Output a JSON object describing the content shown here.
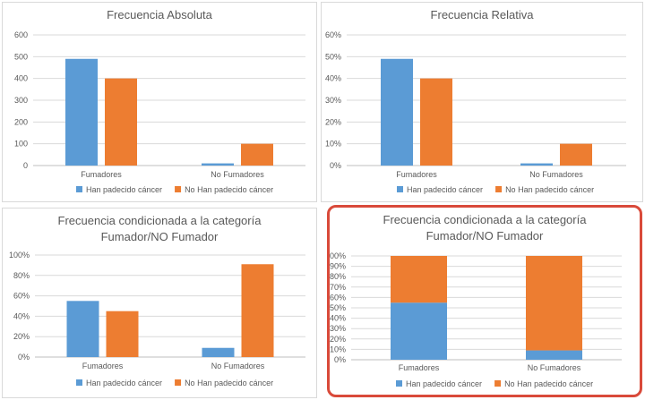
{
  "colors": {
    "han": "#5b9bd5",
    "no_han": "#ed7d31",
    "grid": "#d9d9d9",
    "highlight": "#d94a3a"
  },
  "legend": [
    "Han padecido cáncer",
    "No Han padecido cáncer"
  ],
  "chart_data": [
    {
      "type": "bar",
      "title": "Frecuencia Absoluta",
      "categories": [
        "Fumadores",
        "No Fumadores"
      ],
      "series": [
        {
          "name": "Han padecido cáncer",
          "values": [
            490,
            10
          ]
        },
        {
          "name": "No Han padecido cáncer",
          "values": [
            400,
            100
          ]
        }
      ],
      "ylim": [
        0,
        600
      ],
      "yticks": [
        "0",
        "100",
        "200",
        "300",
        "400",
        "500",
        "600"
      ],
      "grid": true,
      "legend_position": "bottom"
    },
    {
      "type": "bar",
      "title": "Frecuencia Relativa",
      "categories": [
        "Fumadores",
        "No Fumadores"
      ],
      "series": [
        {
          "name": "Han padecido cáncer",
          "values": [
            0.49,
            0.01
          ]
        },
        {
          "name": "No Han padecido cáncer",
          "values": [
            0.4,
            0.1
          ]
        }
      ],
      "ylim": [
        0,
        0.6
      ],
      "yticks": [
        "0%",
        "10%",
        "20%",
        "30%",
        "40%",
        "50%",
        "60%"
      ],
      "grid": true,
      "legend_position": "bottom"
    },
    {
      "type": "bar",
      "title": "Frecuencia condicionada a la categoría Fumador/NO Fumador",
      "title_lines": [
        "Frecuencia condicionada a la categoría",
        "Fumador/NO Fumador"
      ],
      "categories": [
        "Fumadores",
        "No Fumadores"
      ],
      "series": [
        {
          "name": "Han padecido cáncer",
          "values": [
            0.55,
            0.09
          ]
        },
        {
          "name": "No Han padecido cáncer",
          "values": [
            0.45,
            0.91
          ]
        }
      ],
      "ylim": [
        0,
        1
      ],
      "yticks": [
        "0%",
        "20%",
        "40%",
        "60%",
        "80%",
        "100%"
      ],
      "grid": true,
      "legend_position": "bottom"
    },
    {
      "type": "bar",
      "stacked": true,
      "title": "Frecuencia condicionada a la categoría Fumador/NO Fumador",
      "title_lines": [
        "Frecuencia condicionada a la categoría",
        "Fumador/NO Fumador"
      ],
      "categories": [
        "Fumadores",
        "No Fumadores"
      ],
      "series": [
        {
          "name": "Han padecido cáncer",
          "values": [
            0.55,
            0.09
          ]
        },
        {
          "name": "No Han padecido cáncer",
          "values": [
            0.45,
            0.91
          ]
        }
      ],
      "ylim": [
        0,
        1
      ],
      "yticks": [
        "0%",
        "10%",
        "20%",
        "30%",
        "40%",
        "50%",
        "60%",
        "70%",
        "80%",
        "90%",
        "100%"
      ],
      "grid": true,
      "legend_position": "bottom"
    }
  ]
}
